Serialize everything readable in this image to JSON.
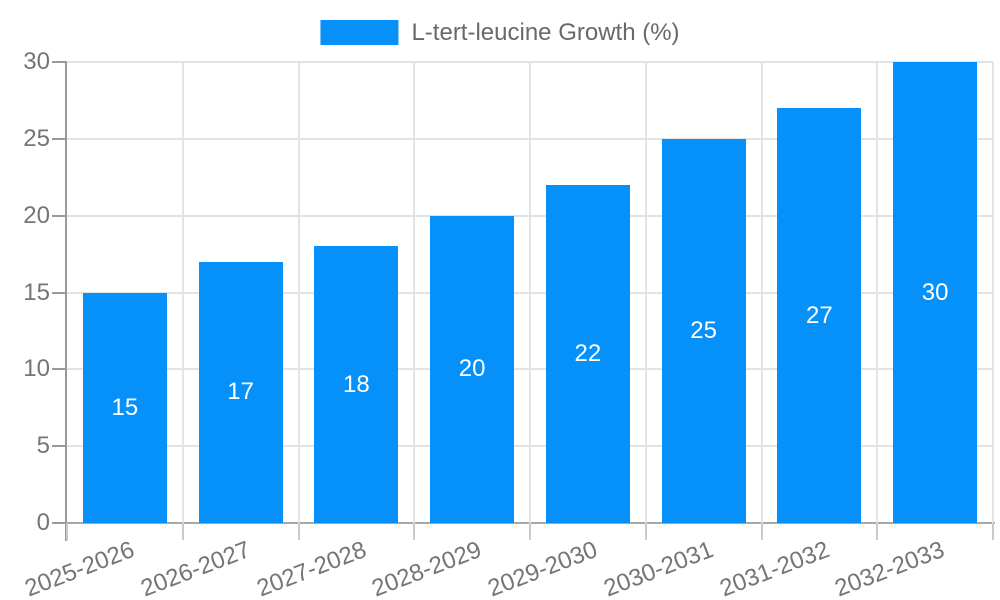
{
  "chart_data": {
    "type": "bar",
    "title": "",
    "legend_position": "top-center",
    "grid": true,
    "categories": [
      "2025-2026",
      "2026-2027",
      "2027-2028",
      "2028-2029",
      "2029-2030",
      "2030-2031",
      "2031-2032",
      "2032-2033"
    ],
    "series": [
      {
        "name": "L-tert-leucine Growth (%)",
        "values": [
          15,
          17,
          18,
          20,
          22,
          25,
          27,
          30
        ]
      }
    ],
    "xlabel": "",
    "ylabel": "",
    "ylim": [
      0,
      30
    ],
    "yticks": [
      0,
      5,
      10,
      15,
      20,
      25,
      30
    ],
    "value_labels_position": "inside-center",
    "x_label_rotation_deg": -21,
    "colors": {
      "bar": "#0690fa",
      "grid": "#e3e3e3",
      "axis_line": "#9a9a9a",
      "tick_label": "#757575",
      "legend_text": "#696969",
      "value_label": "#ffffff",
      "background": "#ffffff"
    }
  }
}
